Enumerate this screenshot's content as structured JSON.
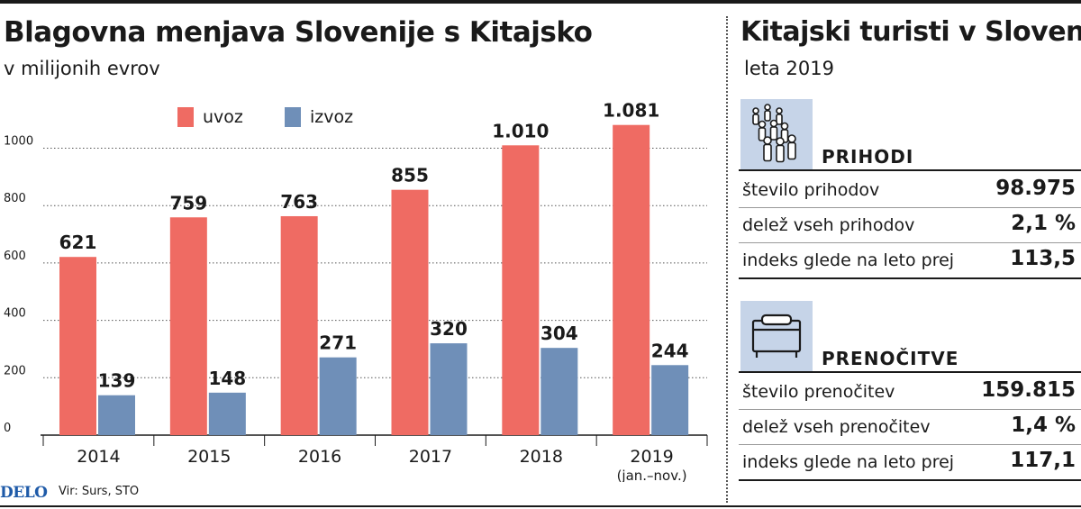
{
  "left": {
    "title": "Blagovna menjava Slovenije s Kitajsko",
    "subtitle": "v milijonih evrov",
    "legend": [
      {
        "label": "uvoz",
        "color": "#ef6b63"
      },
      {
        "label": "izvoz",
        "color": "#6f8fb8"
      }
    ]
  },
  "chart_data": {
    "type": "bar",
    "title": "Blagovna menjava Slovenije s Kitajsko",
    "subtitle": "v milijonih evrov",
    "categories": [
      "2014",
      "2015",
      "2016",
      "2017",
      "2018",
      "2019"
    ],
    "category_notes": [
      "",
      "",
      "",
      "",
      "",
      "(jan.–nov.)"
    ],
    "series": [
      {
        "name": "uvoz",
        "color": "#ef6b63",
        "values": [
          621,
          759,
          763,
          855,
          1010,
          1081
        ],
        "labels": [
          "621",
          "759",
          "763",
          "855",
          "1.010",
          "1.081"
        ]
      },
      {
        "name": "izvoz",
        "color": "#6f8fb8",
        "values": [
          139,
          148,
          271,
          320,
          304,
          244
        ],
        "labels": [
          "139",
          "148",
          "271",
          "320",
          "304",
          "244"
        ]
      }
    ],
    "yticks": [
      0,
      200,
      400,
      600,
      800,
      1000
    ],
    "ylim": [
      0,
      1000
    ],
    "grid": true,
    "legend_position": "top"
  },
  "right": {
    "title": "Kitajski turisti v Sloveniji",
    "subtitle": "leta 2019",
    "arrivals": {
      "icon": "people-group-icon",
      "title": "PRIHODI",
      "rows": [
        {
          "label": "število prihodov",
          "value": "98.975"
        },
        {
          "label": "delež vseh prihodov",
          "value": "2,1 %"
        },
        {
          "label": "indeks glede na leto prej",
          "value": "113,5"
        }
      ]
    },
    "nights": {
      "icon": "bed-icon",
      "title": "PRENOČITVE",
      "rows": [
        {
          "label": "število prenočitev",
          "value": "159.815"
        },
        {
          "label": "delež vseh prenočitev",
          "value": "1,4 %"
        },
        {
          "label": "indeks glede na leto prej",
          "value": "117,1"
        }
      ]
    }
  },
  "footer": {
    "logo": "DELO",
    "source": "Vir: Surs, STO"
  }
}
